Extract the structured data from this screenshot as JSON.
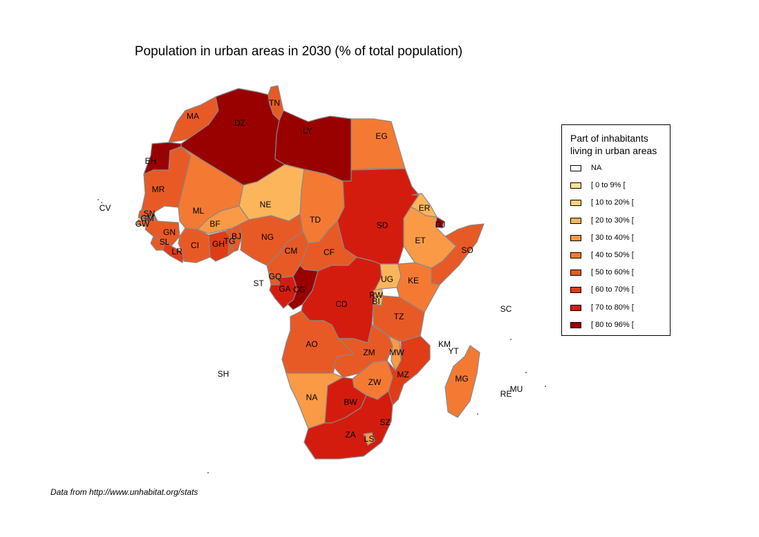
{
  "title": "Population in urban areas in 2030 (% of total population)",
  "source": "Data from http://www.unhabitat.org/stats",
  "legend": {
    "title_line1": "Part of inhabitants",
    "title_line2": "living in urban areas",
    "items": [
      {
        "label": "NA",
        "color": "#ffffff"
      },
      {
        "label": "[ 0 to 9% [",
        "color": "#fee391"
      },
      {
        "label": "[ 10 to 20% [",
        "color": "#fdd27a"
      },
      {
        "label": "[ 20 to 30% [",
        "color": "#fdb55c"
      },
      {
        "label": "[ 30 to 40% [",
        "color": "#fb9a46"
      },
      {
        "label": "[ 40 to 50% [",
        "color": "#f47a33"
      },
      {
        "label": "[ 50 to 60% [",
        "color": "#e85a25"
      },
      {
        "label": "[ 60 to 70% [",
        "color": "#e03c18"
      },
      {
        "label": "[ 70 to 80% [",
        "color": "#d41c0e"
      },
      {
        "label": "[ 80 to 96% [",
        "color": "#990000"
      }
    ]
  },
  "countries": [
    {
      "code": "MA",
      "cls": 6
    },
    {
      "code": "DZ",
      "cls": 9
    },
    {
      "code": "TN",
      "cls": 6
    },
    {
      "code": "LY",
      "cls": 9
    },
    {
      "code": "EG",
      "cls": 5
    },
    {
      "code": "EH",
      "cls": 9
    },
    {
      "code": "MR",
      "cls": 6
    },
    {
      "code": "ML",
      "cls": 5
    },
    {
      "code": "NE",
      "cls": 3
    },
    {
      "code": "TD",
      "cls": 5
    },
    {
      "code": "SD",
      "cls": 8
    },
    {
      "code": "ER",
      "cls": 3
    },
    {
      "code": "DJ",
      "cls": 9
    },
    {
      "code": "ET",
      "cls": 4
    },
    {
      "code": "SO",
      "cls": 6
    },
    {
      "code": "CV",
      "cls": 0
    },
    {
      "code": "SN",
      "cls": 6
    },
    {
      "code": "GM",
      "cls": 6
    },
    {
      "code": "GW",
      "cls": 5
    },
    {
      "code": "GN",
      "cls": 6
    },
    {
      "code": "SL",
      "cls": 6
    },
    {
      "code": "LR",
      "cls": 7
    },
    {
      "code": "CI",
      "cls": 6
    },
    {
      "code": "BF",
      "cls": 4
    },
    {
      "code": "GH",
      "cls": 7
    },
    {
      "code": "TG",
      "cls": 6
    },
    {
      "code": "BJ",
      "cls": 6
    },
    {
      "code": "NG",
      "cls": 6
    },
    {
      "code": "CM",
      "cls": 6
    },
    {
      "code": "CF",
      "cls": 6
    },
    {
      "code": "ST",
      "cls": 0
    },
    {
      "code": "GQ",
      "cls": 6
    },
    {
      "code": "GA",
      "cls": 8
    },
    {
      "code": "CG",
      "cls": 9
    },
    {
      "code": "CD",
      "cls": 8
    },
    {
      "code": "UG",
      "cls": 3
    },
    {
      "code": "KE",
      "cls": 5
    },
    {
      "code": "RW",
      "cls": 3
    },
    {
      "code": "BI",
      "cls": 3
    },
    {
      "code": "TZ",
      "cls": 6
    },
    {
      "code": "SC",
      "cls": 0
    },
    {
      "code": "AO",
      "cls": 6
    },
    {
      "code": "ZM",
      "cls": 6
    },
    {
      "code": "MW",
      "cls": 4
    },
    {
      "code": "MZ",
      "cls": 7
    },
    {
      "code": "KM",
      "cls": 0
    },
    {
      "code": "YT",
      "cls": 0
    },
    {
      "code": "MG",
      "cls": 5
    },
    {
      "code": "ZW",
      "cls": 5
    },
    {
      "code": "NA",
      "cls": 4
    },
    {
      "code": "BW",
      "cls": 8
    },
    {
      "code": "SZ",
      "cls": 5
    },
    {
      "code": "ZA",
      "cls": 8
    },
    {
      "code": "LS",
      "cls": 4
    },
    {
      "code": "SH",
      "cls": 0
    },
    {
      "code": "MU",
      "cls": 0
    },
    {
      "code": "RE",
      "cls": 0
    }
  ]
}
